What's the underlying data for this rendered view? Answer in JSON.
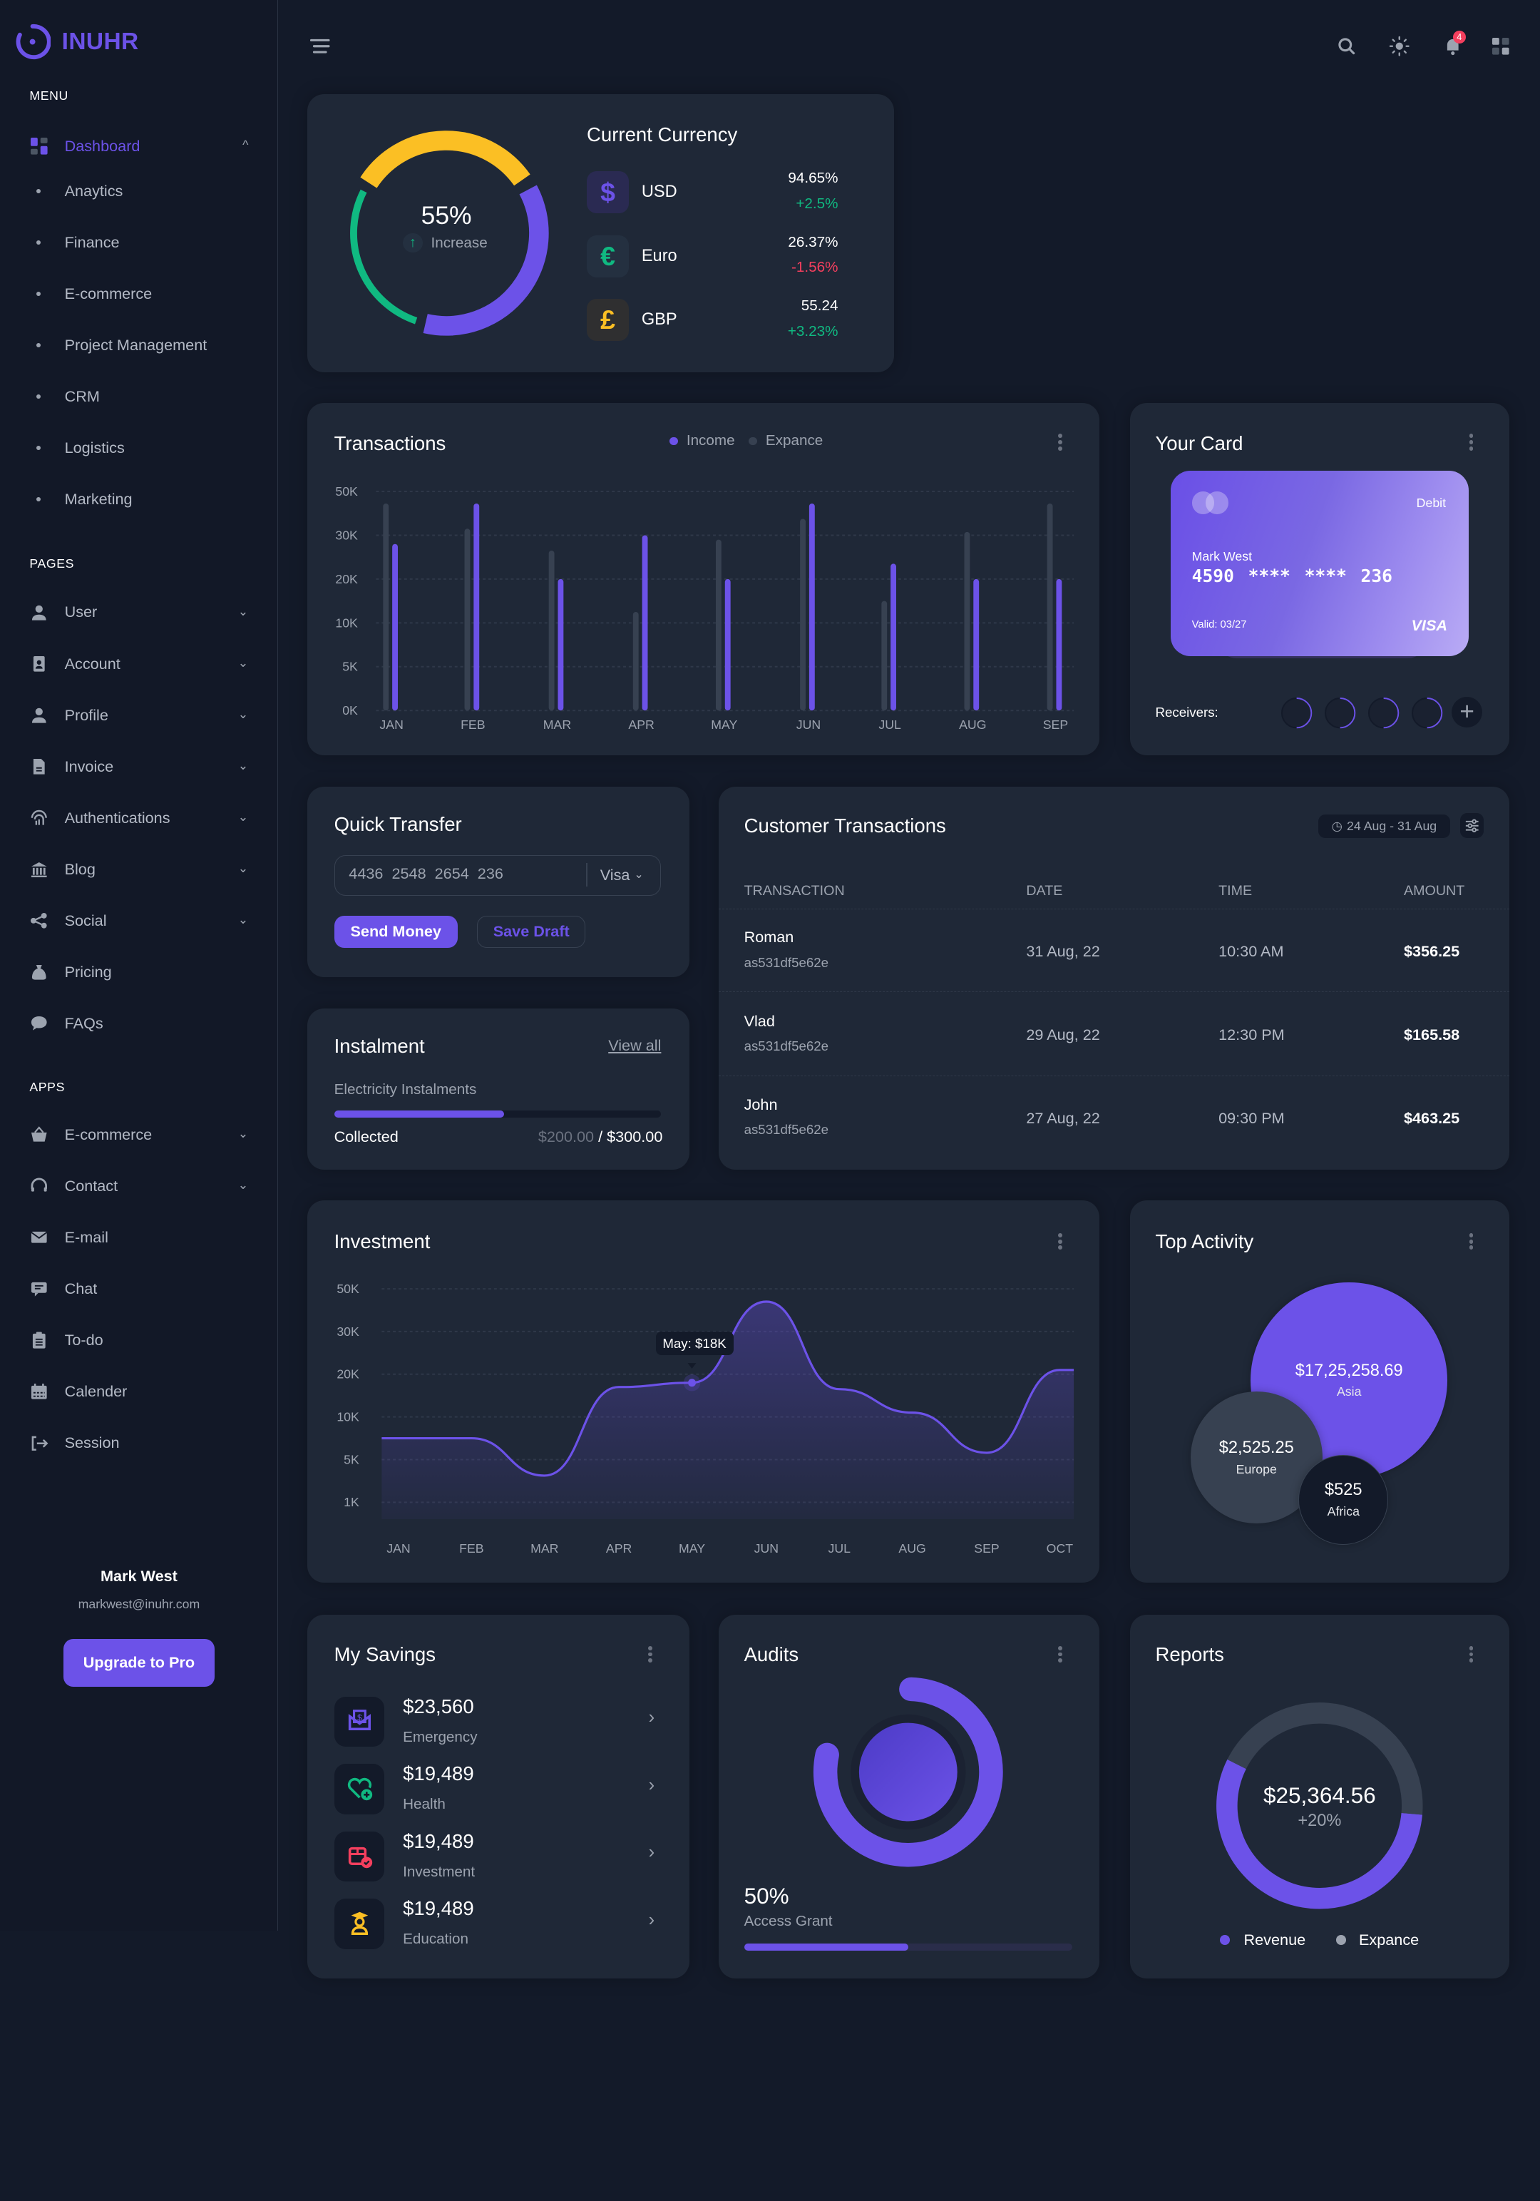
{
  "colors": {
    "accent": "#6c52e8",
    "background": "#131a29",
    "card": "#1f2837",
    "positive": "#10b981",
    "negative": "#f43f5e",
    "gold": "#fbbf24",
    "muted": "#374151"
  },
  "brand": {
    "name": "INUHR"
  },
  "header": {
    "notification_count": "4",
    "icons": [
      "menu-icon",
      "search-icon",
      "theme-sun-icon",
      "bell-icon",
      "apps-grid-icon"
    ]
  },
  "sidebar": {
    "menu_label": "MENU",
    "dashboard": {
      "label": "Dashboard",
      "icon": "dashboard-grid-icon",
      "expanded": true
    },
    "dashboard_items": [
      "Anaytics",
      "Finance",
      "E-commerce",
      "Project Management",
      "CRM",
      "Logistics",
      "Marketing"
    ],
    "pages_label": "PAGES",
    "pages": [
      {
        "label": "User",
        "icon": "user",
        "chevron": true
      },
      {
        "label": "Account",
        "icon": "account",
        "chevron": true
      },
      {
        "label": "Profile",
        "icon": "user",
        "chevron": true
      },
      {
        "label": "Invoice",
        "icon": "invoice",
        "chevron": true
      },
      {
        "label": "Authentications",
        "icon": "fingerprint",
        "chevron": true
      },
      {
        "label": "Blog",
        "icon": "bank",
        "chevron": true
      },
      {
        "label": "Social",
        "icon": "share",
        "chevron": true
      },
      {
        "label": "Pricing",
        "icon": "money-bag",
        "chevron": false
      },
      {
        "label": "FAQs",
        "icon": "question",
        "chevron": false
      }
    ],
    "apps_label": "APPS",
    "apps": [
      {
        "label": "E-commerce",
        "icon": "basket",
        "chevron": true
      },
      {
        "label": "Contact",
        "icon": "headset",
        "chevron": true
      },
      {
        "label": "E-mail",
        "icon": "mail",
        "chevron": false
      },
      {
        "label": "Chat",
        "icon": "chat",
        "chevron": false
      },
      {
        "label": "To-do",
        "icon": "clipboard",
        "chevron": false
      },
      {
        "label": "Calender",
        "icon": "calendar",
        "chevron": false
      },
      {
        "label": "Session",
        "icon": "logout",
        "chevron": false
      }
    ],
    "user": {
      "name": "Mark West",
      "email": "markwest@inuhr.com"
    },
    "upgrade_label": "Upgrade to Pro"
  },
  "currency": {
    "title": "Current Currency",
    "gauge": {
      "value": "55%",
      "caption": "Increase",
      "segments": [
        {
          "color": "#fbbf24",
          "share": 31
        },
        {
          "color": "#6c52e8",
          "share": 36
        },
        {
          "color": "#10b981",
          "share": 28
        }
      ]
    },
    "rows": [
      {
        "code": "USD",
        "symbol": "$",
        "value": "94.65%",
        "change": "+2.5%",
        "trend": "up",
        "color": "#6c52e8",
        "tile": "#2a2a52"
      },
      {
        "code": "Euro",
        "symbol": "€",
        "value": "26.37%",
        "change": "-1.56%",
        "trend": "down",
        "color": "#10b981",
        "tile": "#243040"
      },
      {
        "code": "GBP",
        "symbol": "£",
        "value": "55.24",
        "change": "+3.23%",
        "trend": "up",
        "color": "#fbbf24",
        "tile": "#2f2f30"
      }
    ]
  },
  "transactions": {
    "title": "Transactions"
  },
  "your_card": {
    "title": "Your Card",
    "type": "Debit",
    "holder": "Mark West",
    "number": [
      "4590",
      "****",
      "****",
      "236"
    ],
    "valid": "Valid: 03/27",
    "network": "VISA",
    "receivers_label": "Receivers:",
    "receivers_count": 4
  },
  "quick_transfer": {
    "title": "Quick Transfer",
    "card_number": "4436  2548  2654  236",
    "card_type": "Visa",
    "send_label": "Send Money",
    "draft_label": "Save Draft"
  },
  "instalment": {
    "title": "Instalment",
    "view_all": "View all",
    "item": "Electricity Instalments",
    "collected_label": "Collected",
    "collected": "$200.00",
    "separator": " / ",
    "total": "$300.00",
    "progress": 0.52
  },
  "customer_transactions": {
    "title": "Customer Transactions",
    "date_range": "24 Aug - 31 Aug",
    "columns": [
      "TRANSACTION",
      "DATE",
      "TIME",
      "AMOUNT"
    ],
    "rows": [
      {
        "name": "Roman",
        "id": "as531df5e62e",
        "date": "31 Aug, 22",
        "time": "10:30 AM",
        "amount": "$356.25"
      },
      {
        "name": "Vlad",
        "id": "as531df5e62e",
        "date": "29 Aug, 22",
        "time": "12:30 PM",
        "amount": "$165.58"
      },
      {
        "name": "John",
        "id": "as531df5e62e",
        "date": "27 Aug, 22",
        "time": "09:30 PM",
        "amount": "$463.25"
      }
    ]
  },
  "investment": {
    "title": "Investment",
    "tooltip": "May: $18K"
  },
  "top_activity": {
    "title": "Top Activity",
    "bubbles": [
      {
        "value": "$17,25,258.69",
        "label": "Asia",
        "color": "#6c52e8"
      },
      {
        "value": "$2,525.25",
        "label": "Europe",
        "color": "#374151"
      },
      {
        "value": "$525",
        "label": "Africa",
        "color": "#131a29"
      }
    ]
  },
  "savings": {
    "title": "My Savings",
    "items": [
      {
        "amount": "$23,560",
        "label": "Emergency",
        "icon": "savings-envelope",
        "color": "#6c52e8"
      },
      {
        "amount": "$19,489",
        "label": "Health",
        "icon": "heart-plus",
        "color": "#10b981"
      },
      {
        "amount": "$19,489",
        "label": "Investment",
        "icon": "box-check",
        "color": "#f43f5e"
      },
      {
        "amount": "$19,489",
        "label": "Education",
        "icon": "graduate",
        "color": "#fbbf24"
      }
    ]
  },
  "audits": {
    "title": "Audits",
    "value": "50%",
    "label": "Access Grant",
    "progress": 0.5
  },
  "reports": {
    "title": "Reports",
    "total": "$25,364.56",
    "change": "+20%"
  },
  "chart_data": [
    {
      "type": "bar",
      "title": "Transactions",
      "categories": [
        "JAN",
        "FEB",
        "MAR",
        "APR",
        "MAY",
        "JUN",
        "JUL",
        "AUG",
        "SEP"
      ],
      "y_ticks": [
        "0K",
        "5K",
        "10K",
        "20K",
        "30K",
        "50K"
      ],
      "y_tick_values": [
        0,
        5000,
        10000,
        20000,
        30000,
        50000
      ],
      "ylim": [
        0,
        50000
      ],
      "grid": true,
      "legend": "top",
      "series": [
        {
          "name": "Income",
          "color": "#6c52e8",
          "values": [
            28000,
            44500,
            20000,
            30000,
            20000,
            44500,
            23500,
            20000,
            20000
          ]
        },
        {
          "name": "Expance",
          "color": "#374151",
          "values": [
            44500,
            33000,
            26500,
            12500,
            29000,
            37500,
            15000,
            31500,
            44500
          ]
        }
      ]
    },
    {
      "type": "area",
      "title": "Investment",
      "categories": [
        "JAN",
        "FEB",
        "MAR",
        "APR",
        "MAY",
        "JUN",
        "JUL",
        "AUG",
        "SEP",
        "OCT"
      ],
      "y_ticks": [
        "1K",
        "5K",
        "10K",
        "20K",
        "30K",
        "50K"
      ],
      "y_tick_values": [
        1000,
        5000,
        10000,
        20000,
        30000,
        50000
      ],
      "grid": true,
      "series": [
        {
          "values": [
            7500,
            7500,
            3500,
            17000,
            18000,
            44000,
            16500,
            11000,
            5800,
            21000
          ]
        }
      ],
      "highlight": {
        "category": "MAY",
        "value": 18000
      }
    },
    {
      "type": "pie",
      "title": "Reports",
      "donut": true,
      "series": [
        {
          "name": "Revenue",
          "value": 56,
          "color": "#6c52e8"
        },
        {
          "name": "Expance",
          "value": 44,
          "color": "#374151"
        }
      ],
      "legend": "bottom"
    }
  ]
}
